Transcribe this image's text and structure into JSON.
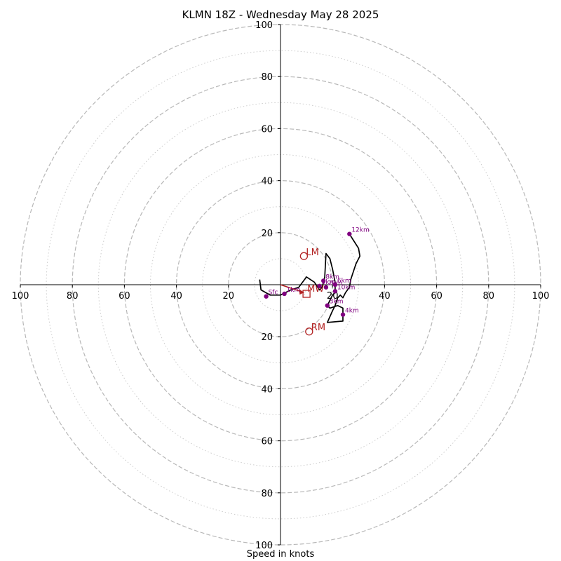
{
  "chart_data": {
    "type": "hodograph",
    "title": "KLMN 18Z - Wednesday May 28 2025",
    "xlabel": "Speed in knots",
    "units": "knots",
    "axis_range": [
      -100,
      100
    ],
    "rings": {
      "major": [
        20,
        40,
        60,
        80,
        100
      ],
      "minor": [
        10,
        30,
        50,
        70,
        90
      ],
      "major_style": "dashed",
      "minor_style": "dotted"
    },
    "x_ticks": [
      {
        "v": -100,
        "label": "100"
      },
      {
        "v": -80,
        "label": "80"
      },
      {
        "v": -60,
        "label": "60"
      },
      {
        "v": -40,
        "label": "40"
      },
      {
        "v": -20,
        "label": "20"
      },
      {
        "v": 20,
        "label": "20"
      },
      {
        "v": 40,
        "label": "40"
      },
      {
        "v": 60,
        "label": "60"
      },
      {
        "v": 80,
        "label": "80"
      },
      {
        "v": 100,
        "label": "100"
      }
    ],
    "y_ticks": [
      {
        "v": 100,
        "label": "100"
      },
      {
        "v": 80,
        "label": "80"
      },
      {
        "v": 60,
        "label": "60"
      },
      {
        "v": 40,
        "label": "40"
      },
      {
        "v": 20,
        "label": "20"
      },
      {
        "v": -20,
        "label": "20"
      },
      {
        "v": -40,
        "label": "40"
      },
      {
        "v": -60,
        "label": "60"
      },
      {
        "v": -80,
        "label": "80"
      },
      {
        "v": -100,
        "label": "100"
      }
    ],
    "trace": {
      "color": "#000000",
      "points": [
        [
          -8,
          2
        ],
        [
          -7.5,
          -2
        ],
        [
          -4,
          -4
        ],
        [
          0,
          -4
        ],
        [
          4,
          -2
        ],
        [
          7,
          -1
        ],
        [
          10,
          3
        ],
        [
          13,
          1
        ],
        [
          15,
          -2
        ],
        [
          16,
          -1
        ],
        [
          17,
          3
        ],
        [
          17.5,
          12
        ],
        [
          19,
          10
        ],
        [
          20,
          6
        ],
        [
          21,
          1
        ],
        [
          21,
          -3
        ],
        [
          20,
          -4
        ],
        [
          19,
          -6
        ],
        [
          18,
          -8
        ],
        [
          19,
          -9
        ],
        [
          22,
          -8
        ],
        [
          24,
          -9
        ],
        [
          24,
          -12
        ],
        [
          24,
          -14
        ],
        [
          18,
          -14.5
        ],
        [
          20,
          -10
        ],
        [
          21,
          -8
        ],
        [
          22,
          -5
        ],
        [
          23,
          -4
        ],
        [
          24,
          -5
        ],
        [
          25,
          -3
        ],
        [
          26.5,
          -1
        ],
        [
          27,
          2
        ],
        [
          28,
          5
        ],
        [
          29,
          8
        ],
        [
          30.5,
          11
        ],
        [
          30,
          14
        ],
        [
          26.5,
          19.5
        ]
      ]
    },
    "height_markers": {
      "color": "#800080",
      "points": [
        {
          "label": "Sfc",
          "u": -5.5,
          "v": -4.5
        },
        {
          "label": "1km",
          "u": 1.5,
          "v": -3.5
        },
        {
          "label": "2km",
          "u": 17.5,
          "v": -1
        },
        {
          "label": "3km",
          "u": 18,
          "v": -8
        },
        {
          "label": "4km",
          "u": 24,
          "v": -11.5
        },
        {
          "label": "6km",
          "u": 21,
          "v": 0
        },
        {
          "label": "8km",
          "u": 16.5,
          "v": 1.5
        },
        {
          "label": "9km",
          "u": 15,
          "v": -0.5
        },
        {
          "label": "10km",
          "u": 21,
          "v": -2.5
        },
        {
          "label": "12km",
          "u": 26.5,
          "v": 19.5
        }
      ]
    },
    "storm_motion": {
      "color": "#b22222",
      "left_mover": {
        "label": "LM",
        "u": 9,
        "v": 11
      },
      "right_mover": {
        "label": "RM",
        "u": 11,
        "v": -18
      },
      "mean_wind": {
        "label": "MW",
        "u": 10,
        "v": -3.5
      },
      "shear_vector": {
        "u0": 0,
        "v0": 0,
        "u1": 9,
        "v1": -3
      }
    }
  }
}
